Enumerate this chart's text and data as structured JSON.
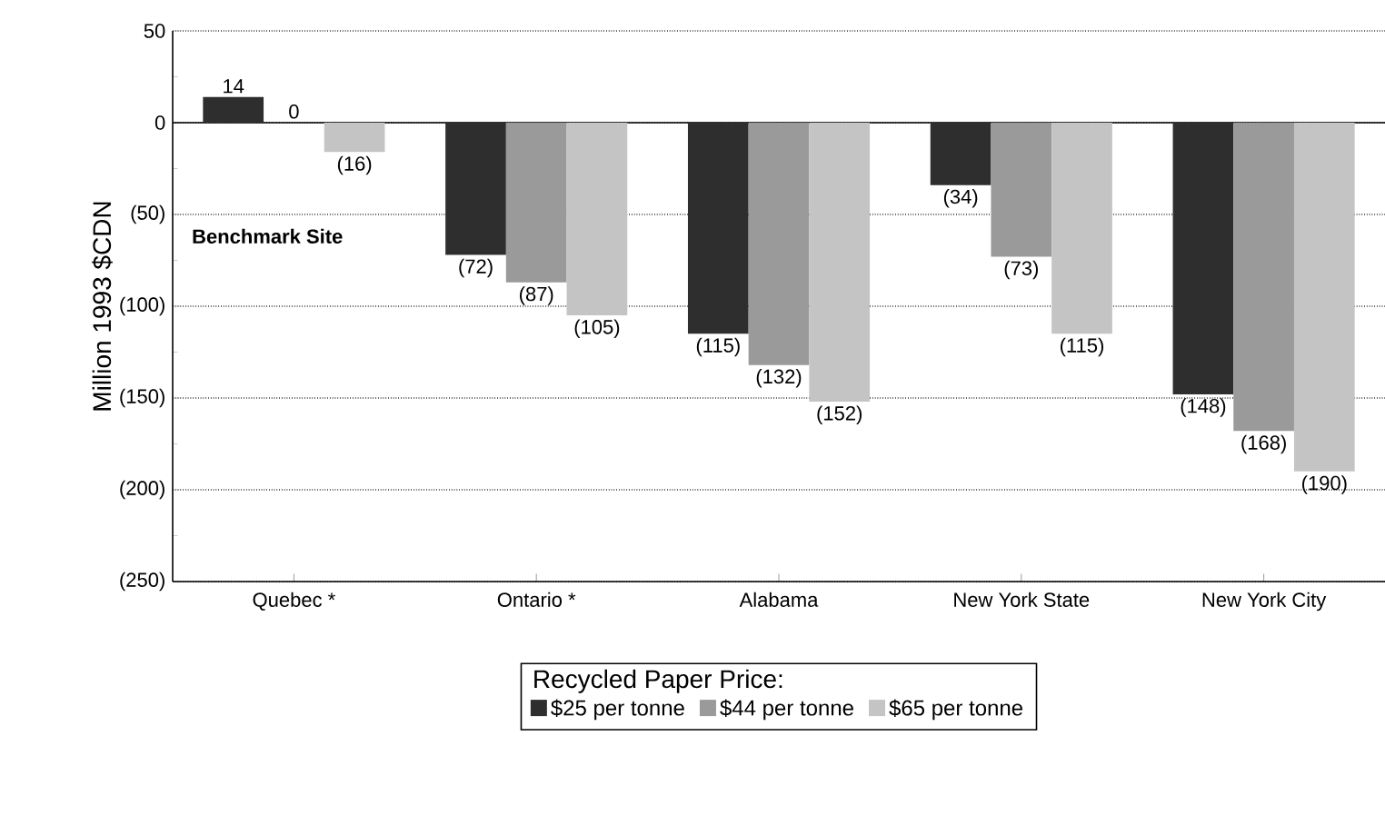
{
  "chart_data": {
    "type": "bar",
    "ylabel": "Million 1993 $CDN",
    "legend_title": "Recycled Paper Price:",
    "categories": [
      "Quebec *",
      "Ontario *",
      "Alabama",
      "New York State",
      "New York City"
    ],
    "series": [
      {
        "name": "$25 per tonne",
        "color": "#2e2e2e",
        "values": [
          14,
          -72,
          -115,
          -34,
          -148
        ],
        "value_labels": [
          "14",
          "(72)",
          "(115)",
          "(34)",
          "(148)"
        ]
      },
      {
        "name": "$44 per tonne",
        "color": "#9a9a9a",
        "values": [
          0,
          -87,
          -132,
          -73,
          -168
        ],
        "value_labels": [
          "0",
          "(87)",
          "(132)",
          "(73)",
          "(168)"
        ]
      },
      {
        "name": "$65 per tonne",
        "color": "#c4c4c4",
        "values": [
          -16,
          -105,
          -152,
          -115,
          -190
        ],
        "value_labels": [
          "(16)",
          "(105)",
          "(152)",
          "(115)",
          "(190)"
        ]
      }
    ],
    "ylim": [
      -250,
      50
    ],
    "yticks": [
      50,
      0,
      {
        "value": -50,
        "label": "(50)"
      },
      {
        "value": -100,
        "label": "(100)"
      },
      {
        "value": -150,
        "label": "(150)"
      },
      {
        "value": -200,
        "label": "(200)"
      },
      {
        "value": -250,
        "label": "(250)"
      }
    ],
    "grid": "y",
    "legend": "bottom",
    "annotations": [
      "Benchmark Site"
    ]
  }
}
